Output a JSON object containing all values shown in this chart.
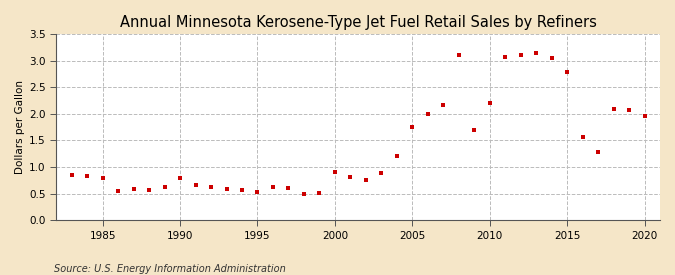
{
  "title": "Annual Minnesota Kerosene-Type Jet Fuel Retail Sales by Refiners",
  "ylabel": "Dollars per Gallon",
  "source": "Source: U.S. Energy Information Administration",
  "fig_background_color": "#f5e6c8",
  "plot_background_color": "#ffffff",
  "years": [
    1983,
    1984,
    1985,
    1986,
    1987,
    1988,
    1989,
    1990,
    1991,
    1992,
    1993,
    1994,
    1995,
    1996,
    1997,
    1998,
    1999,
    2000,
    2001,
    2002,
    2003,
    2004,
    2005,
    2006,
    2007,
    2008,
    2009,
    2010,
    2011,
    2012,
    2013,
    2014,
    2015,
    2016,
    2017,
    2018,
    2019,
    2020
  ],
  "values": [
    0.86,
    0.84,
    0.8,
    0.55,
    0.58,
    0.57,
    0.63,
    0.79,
    0.67,
    0.62,
    0.59,
    0.57,
    0.54,
    0.63,
    0.61,
    0.49,
    0.52,
    0.9,
    0.82,
    0.75,
    0.88,
    1.2,
    1.75,
    2.0,
    2.17,
    3.1,
    1.7,
    2.2,
    3.07,
    3.1,
    3.15,
    3.05,
    2.78,
    1.57,
    1.28,
    2.1,
    2.07,
    1.95
  ],
  "marker_color": "#cc0000",
  "marker": "s",
  "marker_size": 3.5,
  "xlim": [
    1982,
    2021
  ],
  "ylim": [
    0.0,
    3.5
  ],
  "yticks": [
    0.0,
    0.5,
    1.0,
    1.5,
    2.0,
    2.5,
    3.0,
    3.5
  ],
  "xticks": [
    1985,
    1990,
    1995,
    2000,
    2005,
    2010,
    2015,
    2020
  ],
  "grid_color": "#bbbbbb",
  "grid_style": "--",
  "title_fontsize": 10.5,
  "label_fontsize": 7.5,
  "tick_fontsize": 7.5,
  "source_fontsize": 7
}
